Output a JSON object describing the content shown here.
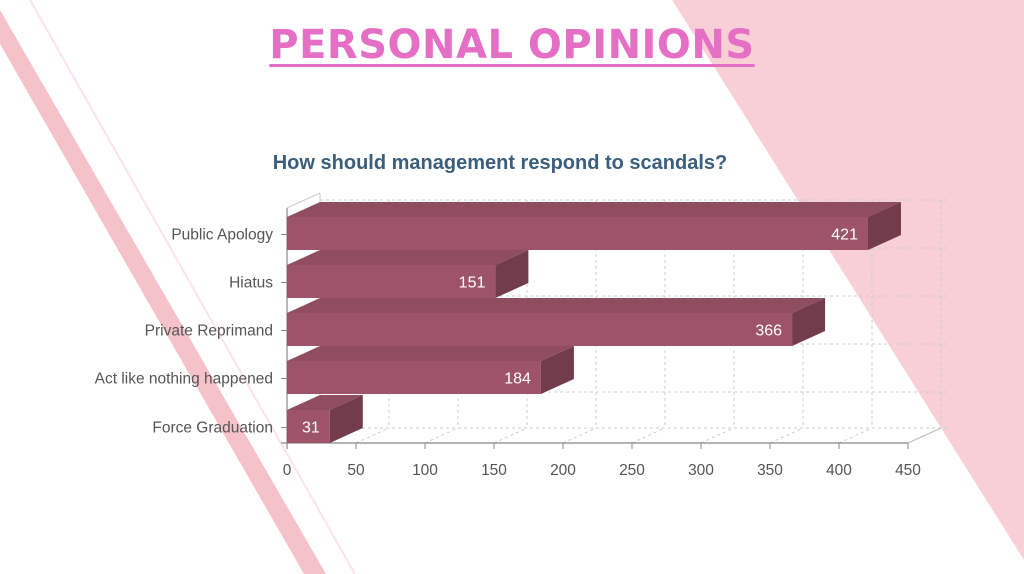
{
  "slide": {
    "title": "PERSONAL OPINIONS",
    "colors": {
      "title": "#e66fc6",
      "decor_pink": "#f8cfd5",
      "bar": "#9e5468"
    }
  },
  "chart_data": {
    "type": "bar",
    "orientation": "horizontal",
    "style": "3d",
    "title": "How should management respond to scandals?",
    "xlabel": "",
    "ylabel": "",
    "categories": [
      "Public Apology",
      "Hiatus",
      "Private Reprimand",
      "Act like nothing happened",
      "Force Graduation"
    ],
    "values": [
      421,
      151,
      366,
      184,
      31
    ],
    "xlim": [
      0,
      450
    ],
    "ticks": [
      0,
      50,
      100,
      150,
      200,
      250,
      300,
      350,
      400,
      450
    ],
    "grid": true,
    "grid_style": "dashed",
    "legend": "none",
    "bar_color": "#9e5468"
  }
}
